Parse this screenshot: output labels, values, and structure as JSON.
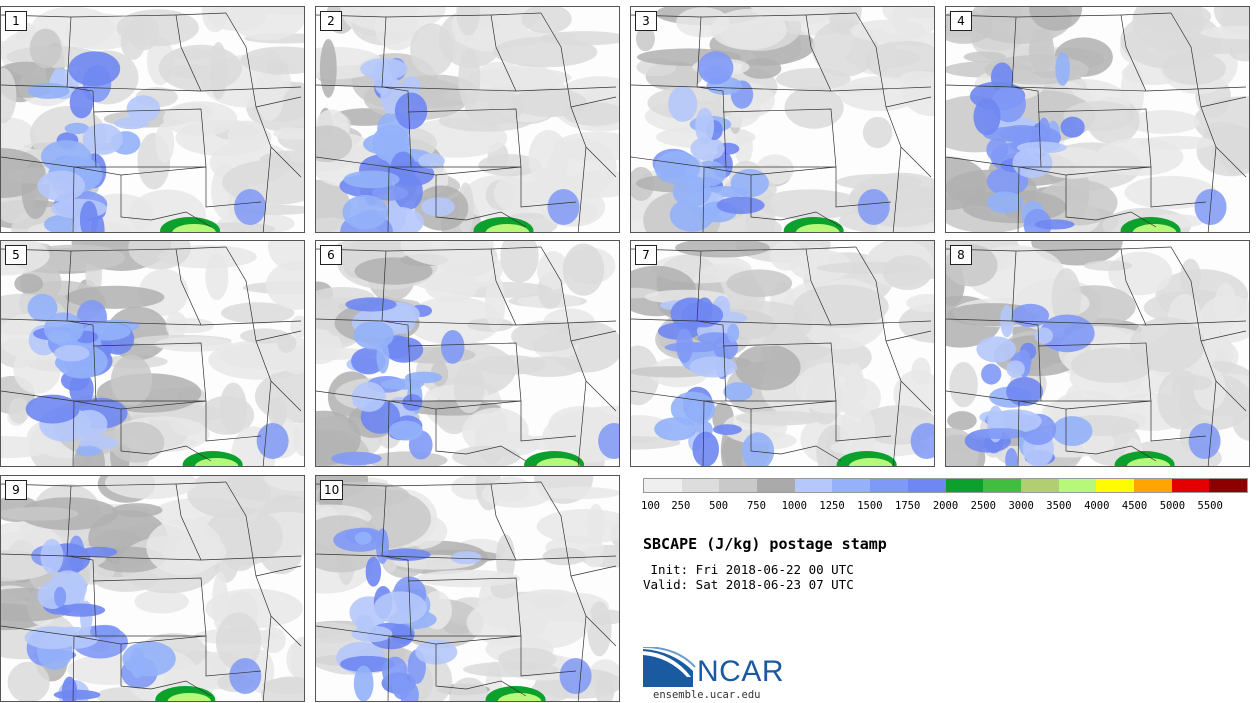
{
  "panels": [
    {
      "label": "1"
    },
    {
      "label": "2"
    },
    {
      "label": "3"
    },
    {
      "label": "4"
    },
    {
      "label": "5"
    },
    {
      "label": "6"
    },
    {
      "label": "7"
    },
    {
      "label": "8"
    },
    {
      "label": "9"
    },
    {
      "label": "10"
    }
  ],
  "legend": {
    "colors": [
      "#efefef",
      "#dddddd",
      "#c9c9c9",
      "#aaaaaa",
      "#b5c8fb",
      "#94b1fa",
      "#7f99f6",
      "#6f87f2",
      "#0ca02c",
      "#41bd41",
      "#b1cf72",
      "#b7f87a",
      "#fffc00",
      "#ffa400",
      "#e40000",
      "#8c0000"
    ],
    "ticks": [
      "100",
      "250",
      "500",
      "750",
      "1000",
      "1250",
      "1500",
      "1750",
      "2000",
      "2500",
      "3000",
      "3500",
      "4000",
      "4500",
      "5000",
      "5500"
    ]
  },
  "title": "SBCAPE (J/kg) postage stamp",
  "init": " Init: Fri 2018-06-22 00 UTC",
  "valid": "Valid: Sat 2018-06-23 07 UTC",
  "logo_text": "NCAR",
  "site": "ensemble.ucar.edu"
}
